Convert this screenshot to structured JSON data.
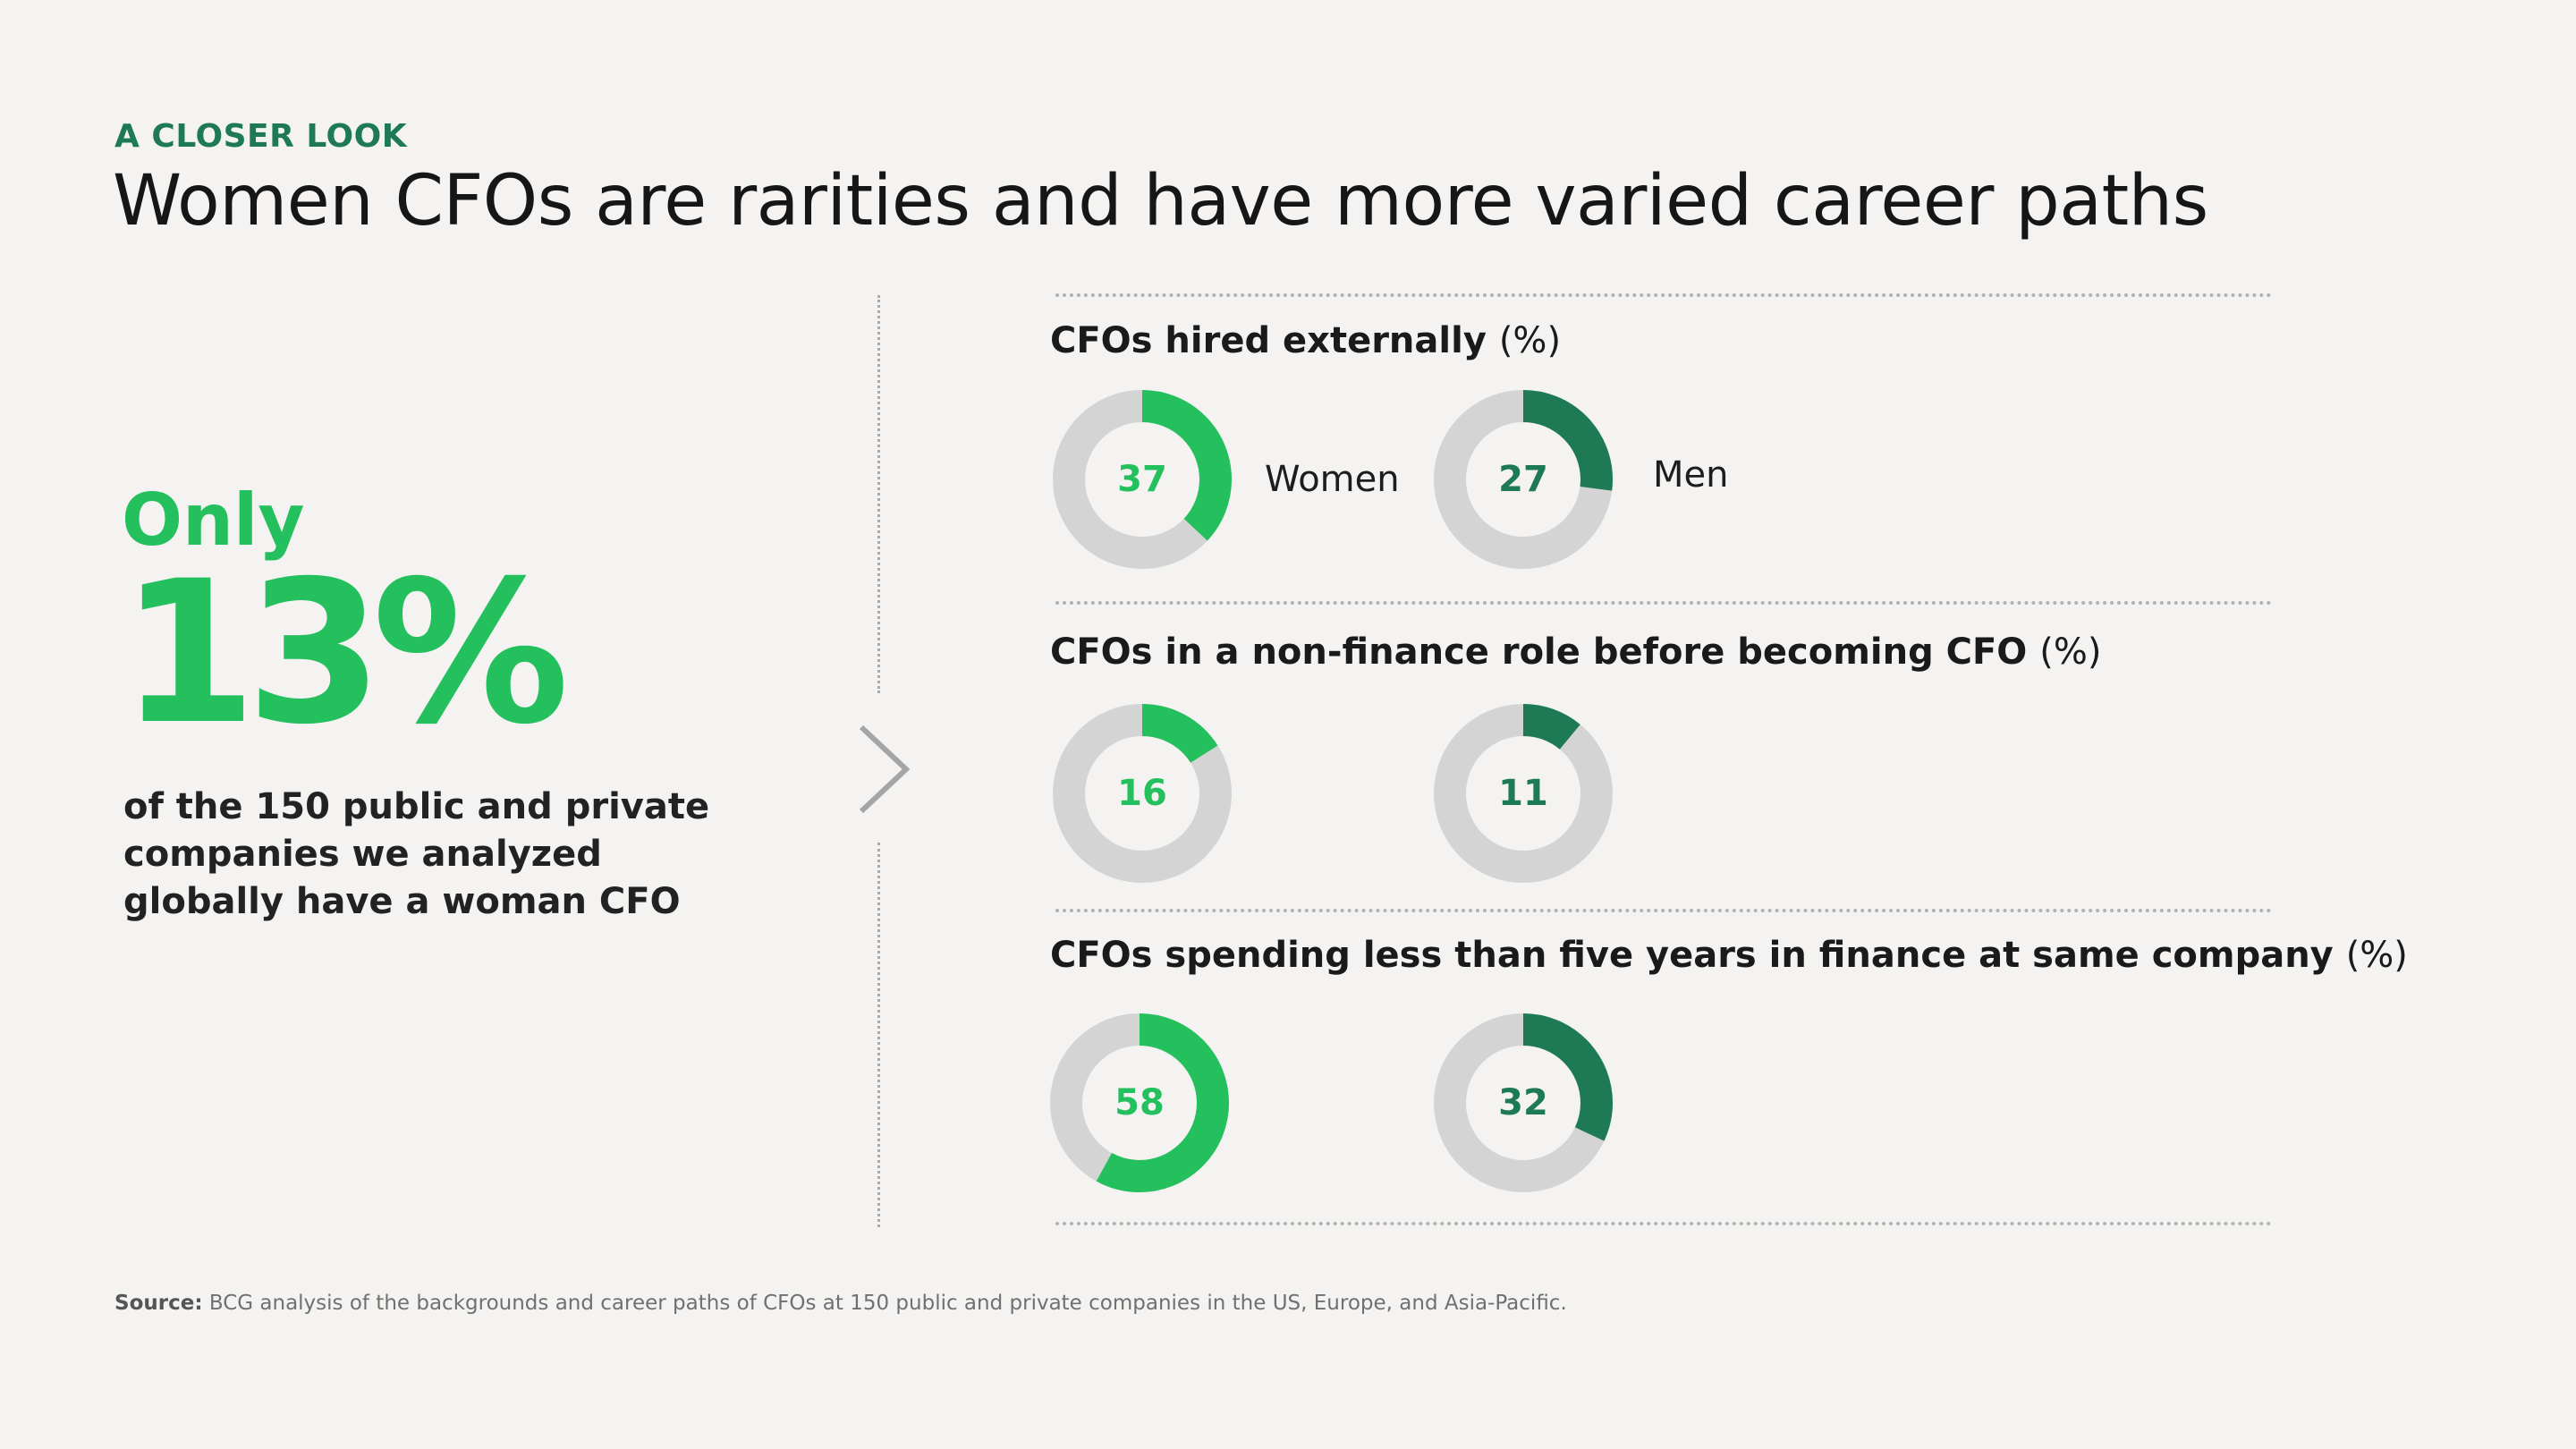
{
  "header": {
    "eyebrow": "A CLOSER LOOK",
    "title": "Women CFOs are rarities and have more varied career paths"
  },
  "highlight": {
    "prefix": "Only",
    "value": "13%",
    "caption": "of the 150 public and private companies we analyzed globally have a woman CFO"
  },
  "colors": {
    "women": "#25c05e",
    "men": "#1e7a55",
    "track": "#d4d4d4"
  },
  "chart_data": [
    {
      "type": "donut",
      "title": "CFOs hired externally",
      "unit": "(%)",
      "series": [
        {
          "name": "Women",
          "value": 37
        },
        {
          "name": "Men",
          "value": 27
        }
      ]
    },
    {
      "type": "donut",
      "title": "CFOs in a non-finance role before becoming CFO",
      "unit": "(%)",
      "series": [
        {
          "value": 16
        },
        {
          "value": 11
        }
      ]
    },
    {
      "type": "donut",
      "title": "CFOs spending less than five years in finance at same company",
      "unit": "(%)",
      "series": [
        {
          "value": 58
        },
        {
          "value": 32
        }
      ]
    }
  ],
  "footer": {
    "source_label": "Source:",
    "source_text": "BCG analysis of the backgrounds and career paths of CFOs at 150 public and private companies in the US, Europe, and Asia-Pacific."
  }
}
